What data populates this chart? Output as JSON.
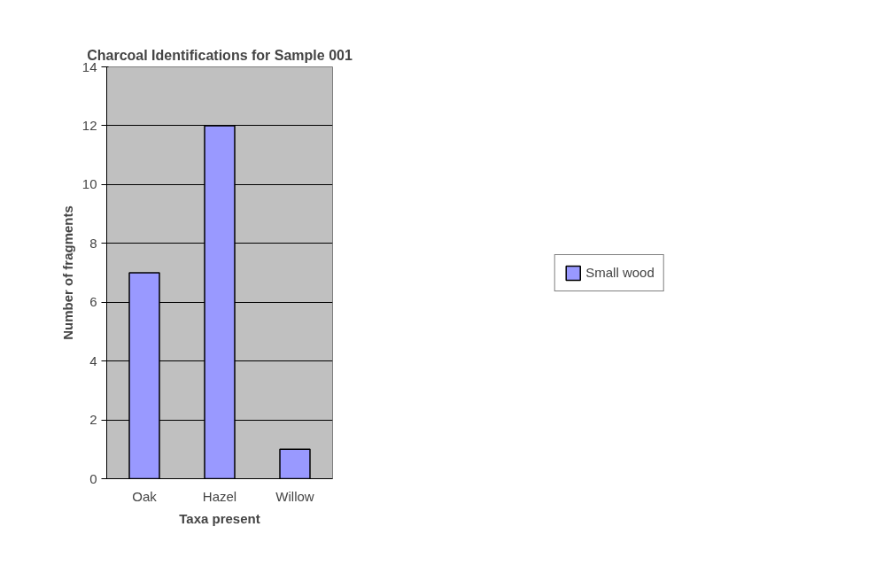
{
  "chart_data": {
    "type": "bar",
    "title": "Charcoal Identifications for Sample 001",
    "xlabel": "Taxa present",
    "ylabel": "Number of fragments",
    "categories": [
      "Oak",
      "Hazel",
      "Willow"
    ],
    "series": [
      {
        "name": "Small wood",
        "color": "#9999ff",
        "values": [
          7,
          12,
          1
        ]
      }
    ],
    "ylim": [
      0,
      14
    ],
    "yticks": [
      0,
      2,
      4,
      6,
      8,
      10,
      12,
      14
    ],
    "grid": "y",
    "legend": "right"
  }
}
